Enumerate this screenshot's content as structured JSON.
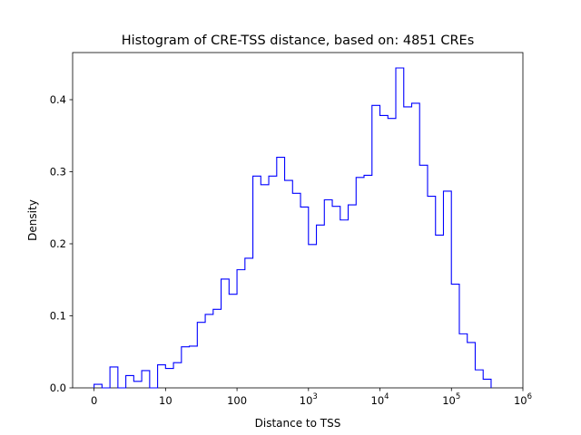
{
  "chart_data": {
    "type": "histogram",
    "title": "Histogram of CRE-TSS distance, based on: 4851 CREs",
    "xlabel": "Distance to TSS",
    "ylabel": "Density",
    "x_scale": "symlog",
    "xlim": [
      -0.3,
      6
    ],
    "ylim": [
      0,
      0.4654
    ],
    "grid": false,
    "legend": "none",
    "line_color": "#0000ff",
    "x_ticks": [
      {
        "value": 0,
        "label": "0"
      },
      {
        "value": 1,
        "label": "10"
      },
      {
        "value": 2,
        "label": "100"
      },
      {
        "value": 3,
        "label": "10",
        "exponent": "3"
      },
      {
        "value": 4,
        "label": "10",
        "exponent": "4"
      },
      {
        "value": 5,
        "label": "10",
        "exponent": "5"
      },
      {
        "value": 6,
        "label": "10",
        "exponent": "6"
      }
    ],
    "y_ticks": [
      {
        "value": 0.0,
        "label": "0.0"
      },
      {
        "value": 0.1,
        "label": "0.1"
      },
      {
        "value": 0.2,
        "label": "0.2"
      },
      {
        "value": 0.3,
        "label": "0.3"
      },
      {
        "value": 0.4,
        "label": "0.4"
      }
    ],
    "bin_start": 0,
    "bin_width": 0.1111,
    "densities": [
      0.005,
      0.0,
      0.029,
      0.0,
      0.017,
      0.009,
      0.024,
      0.0,
      0.032,
      0.027,
      0.035,
      0.057,
      0.058,
      0.091,
      0.102,
      0.109,
      0.151,
      0.13,
      0.164,
      0.18,
      0.294,
      0.282,
      0.294,
      0.32,
      0.288,
      0.27,
      0.251,
      0.199,
      0.226,
      0.261,
      0.252,
      0.233,
      0.254,
      0.292,
      0.295,
      0.392,
      0.378,
      0.374,
      0.444,
      0.39,
      0.395,
      0.309,
      0.266,
      0.212,
      0.273,
      0.144,
      0.075,
      0.063,
      0.025,
      0.012
    ]
  }
}
